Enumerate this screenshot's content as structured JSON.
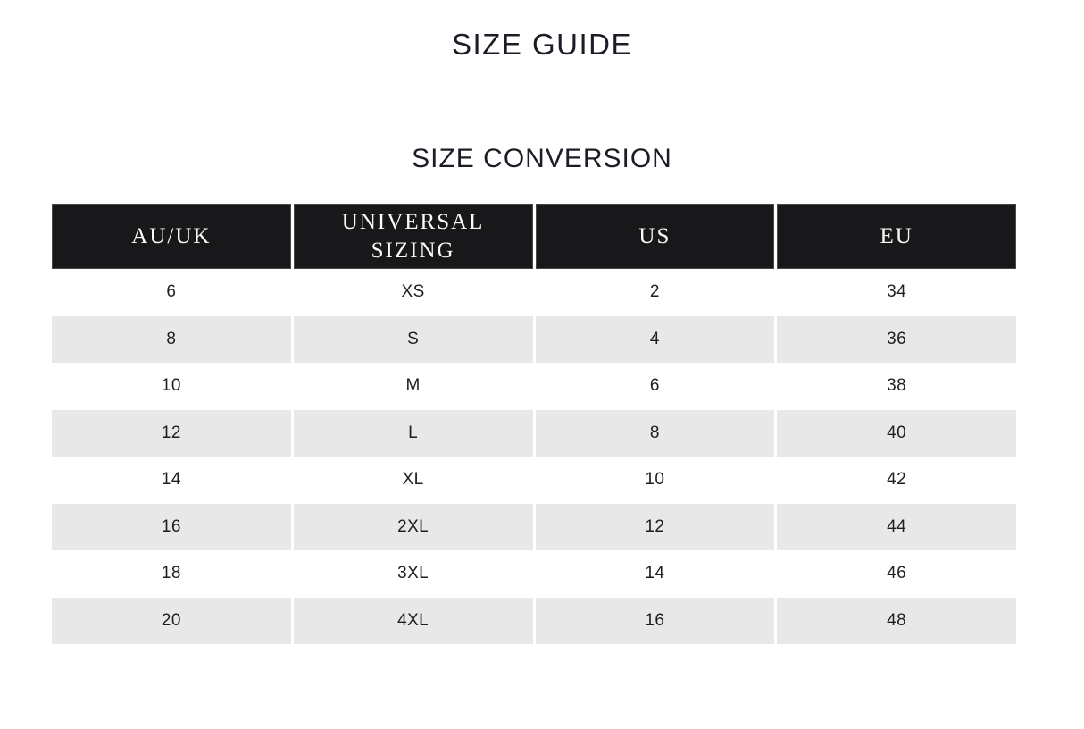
{
  "page": {
    "title": "SIZE GUIDE",
    "section_title": "SIZE CONVERSION"
  },
  "size_table": {
    "columns": [
      "AU/UK",
      "UNIVERSAL SIZING",
      "US",
      "EU"
    ],
    "rows": [
      [
        "6",
        "XS",
        "2",
        "34"
      ],
      [
        "8",
        "S",
        "4",
        "36"
      ],
      [
        "10",
        "M",
        "6",
        "38"
      ],
      [
        "12",
        "L",
        "8",
        "40"
      ],
      [
        "14",
        "XL",
        "10",
        "42"
      ],
      [
        "16",
        "2XL",
        "12",
        "44"
      ],
      [
        "18",
        "3XL",
        "14",
        "46"
      ],
      [
        "20",
        "4XL",
        "16",
        "48"
      ]
    ]
  },
  "colors": {
    "page_bg": "#ffffff",
    "title_text": "#1c1c26",
    "header_bg": "#18181a",
    "header_text": "#fafaf8",
    "alt_row_bg": "#e8e8e9",
    "cell_text": "#1f1f1f"
  }
}
